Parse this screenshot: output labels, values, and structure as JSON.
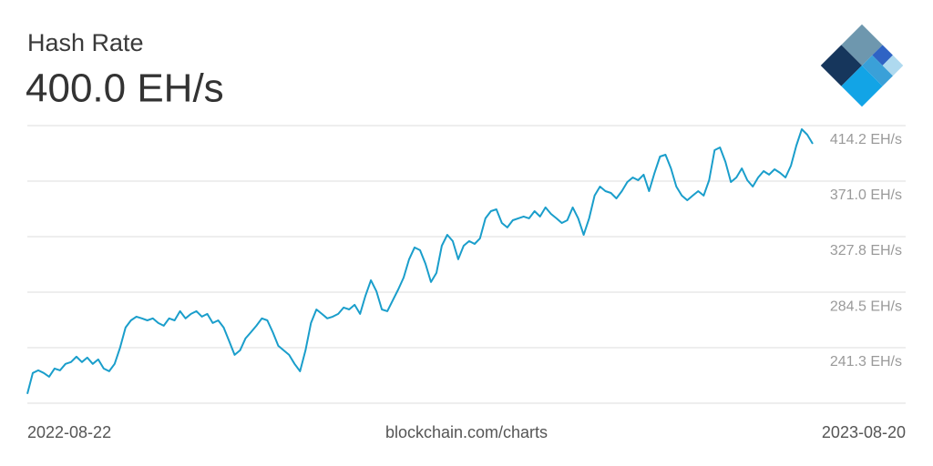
{
  "chart_data": {
    "type": "line",
    "title": "Hash Rate",
    "subtitle": "400.0 EH/s",
    "source": "blockchain.com/charts",
    "x_labels": [
      "2022-08-22",
      "2023-08-20"
    ],
    "color": "#1a9ecb",
    "grid": true,
    "ylim": [
      198.1,
      414.2
    ],
    "yticks": [
      {
        "value": 241.3,
        "label": "241.3 EH/s"
      },
      {
        "value": 284.5,
        "label": "284.5 EH/s"
      },
      {
        "value": 327.8,
        "label": "327.8 EH/s"
      },
      {
        "value": 371.0,
        "label": "371.0 EH/s"
      },
      {
        "value": 414.2,
        "label": "414.2 EH/s"
      }
    ],
    "values": [
      205.4,
      221.6,
      223.7,
      221.6,
      218.7,
      225.1,
      223.7,
      228.7,
      230.1,
      234.3,
      230.1,
      233.6,
      228.7,
      232.2,
      225.1,
      223.0,
      228.7,
      241.4,
      257.0,
      262.6,
      265.5,
      264.1,
      262.6,
      264.1,
      260.5,
      258.4,
      264.1,
      262.6,
      269.7,
      264.1,
      267.6,
      269.7,
      265.5,
      267.6,
      260.5,
      262.6,
      257.0,
      246.4,
      235.7,
      239.3,
      248.5,
      253.4,
      258.4,
      264.1,
      262.6,
      253.4,
      242.8,
      239.3,
      235.7,
      228.7,
      223.0,
      239.3,
      260.5,
      271.1,
      267.6,
      264.1,
      265.5,
      267.6,
      272.6,
      271.1,
      274.7,
      267.6,
      281.8,
      293.8,
      285.3,
      271.1,
      269.7,
      278.2,
      286.7,
      295.9,
      310.1,
      319.3,
      317.2,
      306.6,
      292.4,
      299.5,
      320.7,
      329.2,
      324.3,
      310.1,
      320.7,
      324.3,
      322.1,
      326.4,
      342.0,
      347.6,
      349.0,
      338.4,
      334.9,
      340.5,
      342.0,
      343.4,
      342.0,
      347.6,
      343.4,
      350.5,
      345.5,
      342.0,
      338.4,
      340.5,
      350.5,
      342.0,
      329.2,
      342.0,
      359.7,
      366.7,
      363.2,
      361.8,
      357.5,
      363.2,
      370.3,
      373.8,
      371.7,
      376.0,
      363.2,
      377.4,
      390.1,
      391.5,
      380.9,
      366.7,
      359.7,
      356.1,
      359.7,
      363.2,
      359.7,
      371.7,
      395.1,
      397.2,
      385.9,
      370.3,
      373.8,
      380.9,
      371.7,
      366.7,
      373.8,
      378.8,
      376.0,
      380.2,
      377.4,
      373.8,
      383.0,
      398.6,
      411.4,
      407.1,
      400.0
    ]
  }
}
